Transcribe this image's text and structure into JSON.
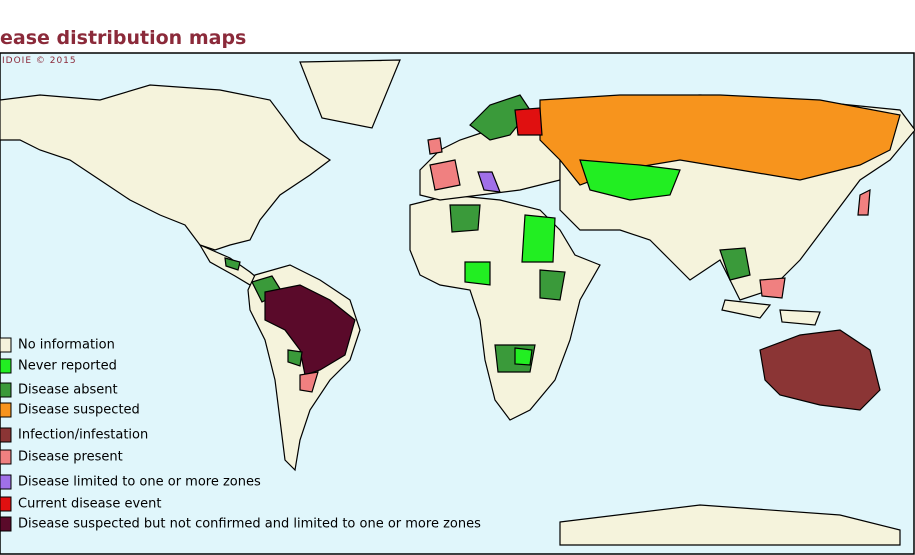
{
  "header": {
    "title": "ease distribution maps",
    "copyright": "IDOIE © 2015"
  },
  "legend": {
    "items": [
      {
        "label": "No information",
        "color": "#f5f3dc"
      },
      {
        "label": "Never reported",
        "color": "#22ee22"
      },
      {
        "label": "Disease absent",
        "color": "#3a9a3a"
      },
      {
        "label": "Disease suspected",
        "color": "#f7941d"
      },
      {
        "label": "Infection/infestation",
        "color": "#8b3535"
      },
      {
        "label": "Disease present",
        "color": "#f08080"
      },
      {
        "label": "Disease limited to one or more zones",
        "color": "#a070e8"
      },
      {
        "label": "Current disease event",
        "color": "#e01010"
      },
      {
        "label": "Disease suspected but not confirmed and limited to one or more zones",
        "color": "#5a0a2a"
      }
    ]
  }
}
